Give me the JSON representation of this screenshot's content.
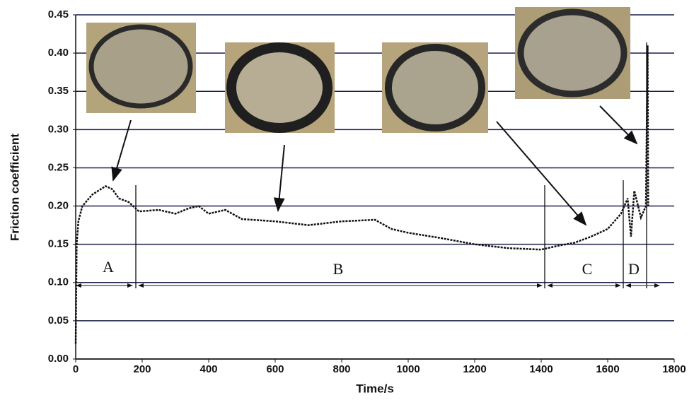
{
  "chart_data": {
    "type": "line",
    "x_label": "Time/s",
    "y_label": "Friction coefficient",
    "xlim": [
      0,
      1800
    ],
    "xticks": [
      0,
      200,
      400,
      600,
      800,
      1000,
      1200,
      1400,
      1600,
      1800
    ],
    "ylim": [
      0,
      0.45
    ],
    "yticks": [
      {
        "value": 0,
        "label": "0.00"
      },
      0.05,
      {
        "value": 0.1,
        "label": "0.10"
      },
      0.15,
      {
        "value": 0.2,
        "label": "0.20"
      },
      0.25,
      {
        "value": 0.3,
        "label": "0.30"
      },
      0.35,
      {
        "value": 0.4,
        "label": "0.40"
      },
      0.45
    ],
    "grid": true,
    "grid_color": "#1c1f4a",
    "annotations": [
      "A",
      "B",
      "C",
      "D"
    ],
    "series": [
      {
        "color": "#111111",
        "x": [
          0,
          3,
          8,
          20,
          50,
          90,
          110,
          130,
          160,
          190,
          250,
          300,
          340,
          370,
          400,
          450,
          500,
          600,
          700,
          800,
          900,
          950,
          1000,
          1100,
          1200,
          1300,
          1400,
          1450,
          1500,
          1550,
          1600,
          1640,
          1660,
          1670,
          1680,
          1700,
          1715,
          1720,
          1722
        ],
        "values": [
          0.02,
          0.15,
          0.18,
          0.2,
          0.215,
          0.226,
          0.222,
          0.21,
          0.205,
          0.193,
          0.195,
          0.19,
          0.197,
          0.2,
          0.19,
          0.195,
          0.183,
          0.18,
          0.175,
          0.18,
          0.182,
          0.17,
          0.165,
          0.158,
          0.15,
          0.145,
          0.143,
          0.148,
          0.152,
          0.16,
          0.17,
          0.19,
          0.21,
          0.16,
          0.22,
          0.185,
          0.2,
          0.41,
          0.2
        ]
      }
    ]
  }
}
